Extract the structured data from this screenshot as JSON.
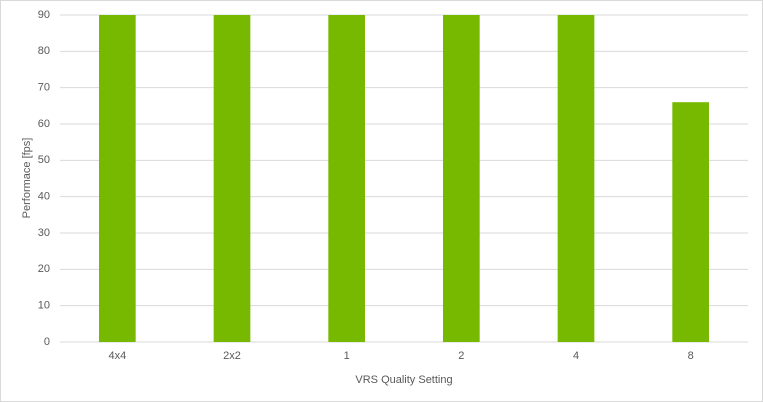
{
  "chart_data": {
    "type": "bar",
    "x_label": "VRS Quality Setting",
    "y_label": "Performace [fps]",
    "categories": [
      "4x4",
      "2x2",
      "1",
      "2",
      "4",
      "8"
    ],
    "values": [
      90,
      90,
      90,
      90,
      90,
      66
    ],
    "color": "#76b900",
    "ylim": [
      0,
      90
    ],
    "yticks": [
      0,
      10,
      20,
      30,
      40,
      50,
      60,
      70,
      80,
      90
    ],
    "grid": true
  }
}
